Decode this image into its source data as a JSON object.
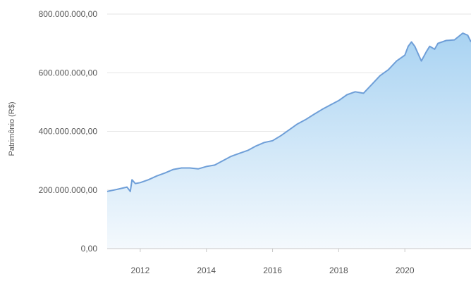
{
  "chart_data": {
    "type": "area",
    "title": "",
    "xlabel": "",
    "ylabel": "Patrimônio (R$)",
    "x_ticks": [
      "2012",
      "2014",
      "2016",
      "2018",
      "2020"
    ],
    "x_tick_values": [
      2012,
      2014,
      2016,
      2018,
      2020
    ],
    "y_ticks": [
      "0,00",
      "200.000.000,00",
      "400.000.000,00",
      "600.000.000,00",
      "800.000.000,00"
    ],
    "y_tick_values": [
      0,
      200000000,
      400000000,
      600000000,
      800000000
    ],
    "xlim": [
      2011.0,
      2022.0
    ],
    "ylim": [
      0,
      800000000
    ],
    "grid": true,
    "colors": {
      "line": "#6f9fd8",
      "fill_top": "#a9d3f2",
      "fill_bottom": "#f4f9fd",
      "grid": "#e6e6e6",
      "axis": "#c8c8c8"
    },
    "series": [
      {
        "x": [
          2011.0,
          2011.3,
          2011.6,
          2011.7,
          2011.75,
          2011.85,
          2012.0,
          2012.25,
          2012.5,
          2012.75,
          2013.0,
          2013.25,
          2013.5,
          2013.75,
          2014.0,
          2014.25,
          2014.5,
          2014.75,
          2015.0,
          2015.25,
          2015.5,
          2015.75,
          2016.0,
          2016.25,
          2016.5,
          2016.75,
          2017.0,
          2017.25,
          2017.5,
          2017.75,
          2018.0,
          2018.25,
          2018.5,
          2018.75,
          2019.0,
          2019.25,
          2019.5,
          2019.75,
          2020.0,
          2020.1,
          2020.2,
          2020.3,
          2020.5,
          2020.65,
          2020.75,
          2020.9,
          2021.0,
          2021.25,
          2021.5,
          2021.75,
          2021.9,
          2022.0
        ],
        "values": [
          195000000,
          202000000,
          210000000,
          195000000,
          235000000,
          222000000,
          225000000,
          235000000,
          248000000,
          258000000,
          270000000,
          275000000,
          275000000,
          272000000,
          280000000,
          285000000,
          300000000,
          315000000,
          325000000,
          335000000,
          350000000,
          362000000,
          368000000,
          385000000,
          405000000,
          425000000,
          440000000,
          458000000,
          475000000,
          490000000,
          505000000,
          525000000,
          535000000,
          530000000,
          560000000,
          590000000,
          610000000,
          640000000,
          660000000,
          690000000,
          705000000,
          690000000,
          640000000,
          672000000,
          690000000,
          680000000,
          700000000,
          710000000,
          712000000,
          735000000,
          728000000,
          705000000
        ]
      }
    ]
  }
}
